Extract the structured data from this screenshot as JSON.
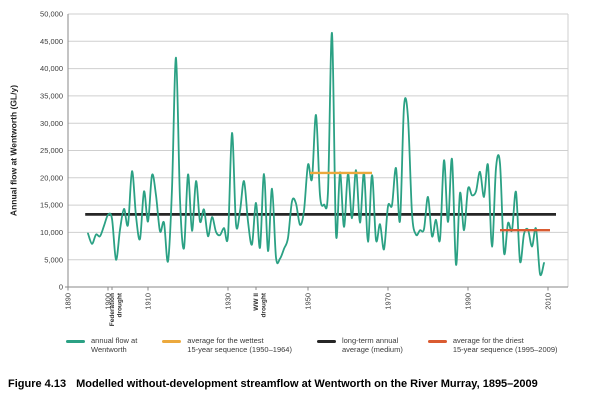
{
  "figure": {
    "caption_label": "Figure 4.13",
    "caption_text": "Modelled without-development streamflow at Wentworth on the River Murray, 1895–2009"
  },
  "chart_data": {
    "type": "line",
    "title": "",
    "xlabel": "",
    "ylabel": "Annual flow at Wentworth (GL/y)",
    "ylim": [
      0,
      50000
    ],
    "ytick_step": 5000,
    "xlim": [
      1890,
      2010
    ],
    "xticks": [
      1890,
      1900,
      1910,
      1930,
      1950,
      1970,
      1990,
      2010
    ],
    "special_xticks": [
      {
        "year": 1901,
        "lines": [
          "Federation",
          "drought"
        ]
      },
      {
        "year": 1937,
        "lines": [
          "WW II",
          "drought"
        ]
      }
    ],
    "grid": "horizontal-gray",
    "legend_position": "bottom",
    "colors": {
      "annual_flow": "#2BA184",
      "wettest_avg": "#ECA93D",
      "long_term_avg": "#262626",
      "driest_avg": "#DA5B31",
      "gridline": "#cfcfcf",
      "axis": "#8a8a8a"
    },
    "series": [
      {
        "name": "annual flow at Wentworth",
        "color": "#2BA184",
        "x_start": 1895,
        "x_end": 2009,
        "values": [
          9800,
          7900,
          9600,
          9300,
          11200,
          13200,
          12500,
          5000,
          10500,
          14300,
          11400,
          21200,
          13000,
          8800,
          17500,
          12000,
          20500,
          16800,
          10200,
          11800,
          4700,
          18000,
          42000,
          16000,
          7100,
          20600,
          10300,
          19400,
          12000,
          14200,
          9300,
          12800,
          10100,
          9500,
          10800,
          9400,
          28200,
          11500,
          13900,
          19400,
          12000,
          7800,
          15400,
          7200,
          20700,
          6600,
          18000,
          5400,
          5200,
          7000,
          9000,
          15700,
          15300,
          11400,
          14000,
          22400,
          19800,
          31500,
          16800,
          15100,
          17500,
          46500,
          9700,
          21000,
          11000,
          20800,
          12600,
          21400,
          11800,
          20900,
          8300,
          20500,
          8600,
          11500,
          6900,
          14800,
          15000,
          21800,
          12100,
          33000,
          31000,
          13500,
          9600,
          10400,
          10600,
          16500,
          9300,
          12300,
          8700,
          23200,
          11900,
          23400,
          4100,
          17200,
          10400,
          18000,
          16800,
          17500,
          21100,
          16500,
          22300,
          7400,
          21800,
          22600,
          6300,
          11700,
          10400,
          17400,
          4700,
          9700,
          10500,
          7400,
          10700,
          2400,
          4400
        ]
      }
    ],
    "overlays": [
      {
        "id": "long-term-average-line",
        "name": "long-term annual average (medium)",
        "color": "#262626",
        "value": 13300,
        "from": 1894.3,
        "to": 2012,
        "width": 2.8
      },
      {
        "id": "wettest-average-line",
        "name": "average for the wettest 15-year sequence (1950–1964)",
        "color": "#ECA93D",
        "value": 20900,
        "from": 1950.5,
        "to": 1966,
        "width": 2.4
      },
      {
        "id": "driest-average-line",
        "name": "average for the driest 15-year sequence (1995–2009)",
        "color": "#DA5B31",
        "value": 10400,
        "from": 1998,
        "to": 2010.5,
        "width": 2.4
      }
    ],
    "legend": [
      {
        "color": "#2BA184",
        "lines": [
          "annual flow at",
          "Wentworth"
        ]
      },
      {
        "color": "#ECA93D",
        "lines": [
          "average for the wettest",
          "15-year sequence (1950–1964)"
        ]
      },
      {
        "color": "#262626",
        "lines": [
          "long-term annual",
          "average (medium)"
        ]
      },
      {
        "color": "#DA5B31",
        "lines": [
          "average for the driest",
          "15-year sequence (1995–2009)"
        ]
      }
    ]
  }
}
